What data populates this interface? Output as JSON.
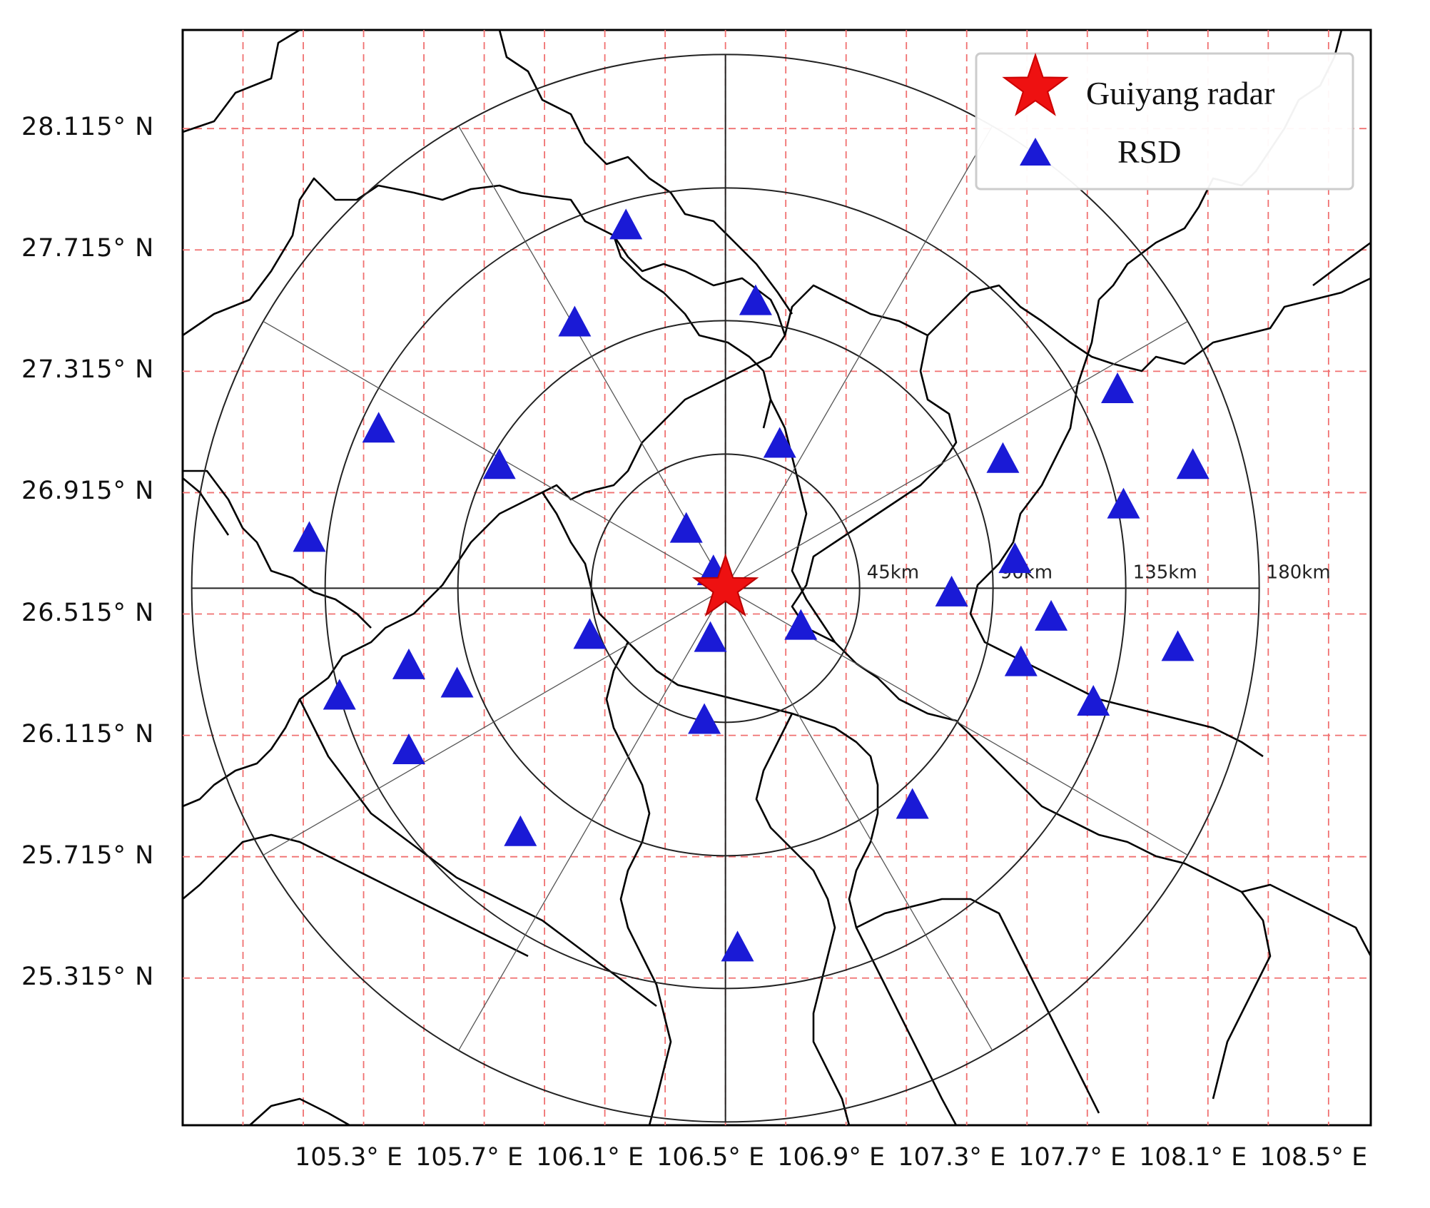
{
  "map": {
    "center_label": "Guiyang radar",
    "center": {
      "lon": 106.7,
      "lat": 26.6
    },
    "lat_ticks": [
      "28.115° N",
      "27.715° N",
      "27.315° N",
      "26.915° N",
      "26.515° N",
      "26.115° N",
      "25.715° N",
      "25.315° N"
    ],
    "lon_ticks": [
      "105.3° E",
      "105.7° E",
      "106.1° E",
      "106.5° E",
      "106.9° E",
      "107.3° E",
      "107.7° E",
      "108.1° E",
      "108.5° E"
    ],
    "range_rings": [
      "45km",
      "90km",
      "135km",
      "180km"
    ],
    "legend": {
      "radar": "Guiyang radar",
      "rsd": "RSD",
      "placement": "top-right"
    },
    "colors": {
      "grid": "#f07070",
      "radar": "#ee1111",
      "rsd": "#1a1ad6",
      "boundary": "#000000"
    },
    "rsd_stations": [
      {
        "lon": 106.37,
        "lat": 27.79
      },
      {
        "lon": 106.2,
        "lat": 27.47
      },
      {
        "lon": 106.8,
        "lat": 27.54
      },
      {
        "lon": 105.55,
        "lat": 27.12
      },
      {
        "lon": 105.95,
        "lat": 27.0
      },
      {
        "lon": 106.88,
        "lat": 27.07
      },
      {
        "lon": 107.62,
        "lat": 27.02
      },
      {
        "lon": 108.0,
        "lat": 27.25
      },
      {
        "lon": 108.25,
        "lat": 27.0
      },
      {
        "lon": 108.02,
        "lat": 26.87
      },
      {
        "lon": 105.32,
        "lat": 26.76
      },
      {
        "lon": 106.57,
        "lat": 26.79
      },
      {
        "lon": 106.66,
        "lat": 26.65
      },
      {
        "lon": 107.66,
        "lat": 26.69
      },
      {
        "lon": 107.45,
        "lat": 26.58
      },
      {
        "lon": 107.78,
        "lat": 26.5
      },
      {
        "lon": 106.25,
        "lat": 26.44
      },
      {
        "lon": 106.65,
        "lat": 26.43
      },
      {
        "lon": 106.95,
        "lat": 26.47
      },
      {
        "lon": 107.68,
        "lat": 26.35
      },
      {
        "lon": 108.2,
        "lat": 26.4
      },
      {
        "lon": 107.92,
        "lat": 26.22
      },
      {
        "lon": 105.65,
        "lat": 26.34
      },
      {
        "lon": 105.42,
        "lat": 26.24
      },
      {
        "lon": 105.81,
        "lat": 26.28
      },
      {
        "lon": 105.65,
        "lat": 26.06
      },
      {
        "lon": 106.63,
        "lat": 26.16
      },
      {
        "lon": 107.32,
        "lat": 25.88
      },
      {
        "lon": 106.02,
        "lat": 25.79
      },
      {
        "lon": 106.74,
        "lat": 25.41
      }
    ]
  }
}
